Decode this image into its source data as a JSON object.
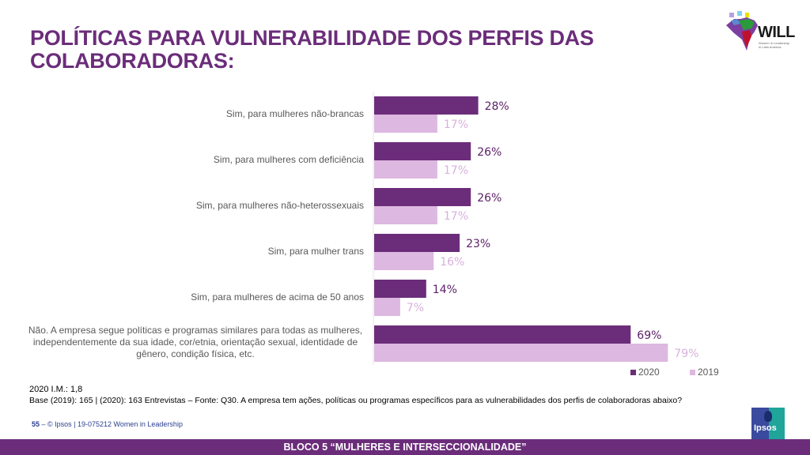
{
  "header": {
    "title": "POLÍTICAS PARA VULNERABILIDADE DOS PERFIS DAS COLABORADORAS:",
    "logo_will": {
      "text": "WILL",
      "subtitle": "Women in Leadership in Latin America"
    }
  },
  "chart_data": {
    "type": "bar",
    "orientation": "horizontal",
    "title": "POLÍTICAS PARA VULNERABILIDADE DOS PERFIS DAS COLABORADORAS:",
    "xlabel": "",
    "ylabel": "",
    "xlim": [
      0,
      100
    ],
    "grid": false,
    "legend_position": "bottom-right",
    "categories": [
      "Sim, para mulheres não-brancas",
      "Sim, para mulheres com deficiência",
      "Sim, para mulheres não-heterossexuais",
      "Sim, para mulher trans",
      "Sim, para mulheres de acima de 50 anos",
      "Não. A empresa segue políticas e programas similares para todas as mulheres, independentemente da sua idade, cor/etnia, orientação sexual, identidade de gênero, condição física, etc."
    ],
    "series": [
      {
        "name": "2020",
        "color": "#6b2d7a",
        "label_color": "#5a1f66",
        "values": [
          28,
          26,
          26,
          23,
          14,
          69
        ],
        "labels": [
          "28%",
          "26%",
          "26%",
          "23%",
          "14%",
          "69%"
        ]
      },
      {
        "name": "2019",
        "color": "#ddb8e0",
        "label_color": "#d8b0dc",
        "values": [
          17,
          17,
          17,
          16,
          7,
          79
        ],
        "labels": [
          "17%",
          "17%",
          "17%",
          "16%",
          "7%",
          "79%"
        ]
      }
    ]
  },
  "legend": {
    "items": [
      "2020",
      "2019"
    ]
  },
  "notes": {
    "im": "2020 I.M.: 1,8",
    "base": "Base (2019): 165 | (2020): 163 Entrevistas – Fonte: Q30. A empresa tem ações, políticas ou programas específicos para as vulnerabilidades dos perfis de colaboradoras abaixo?"
  },
  "footer": {
    "page_number": "55",
    "copyright": "– © Ipsos | 19-075212 Women in Leadership",
    "section_banner": "BLOCO 5 “MULHERES E INTERSECCIONALIDADE”",
    "ipsos_logo": "Ipsos"
  },
  "colors": {
    "brand_purple": "#6b2d7a",
    "light_purple": "#ddb8e0"
  }
}
